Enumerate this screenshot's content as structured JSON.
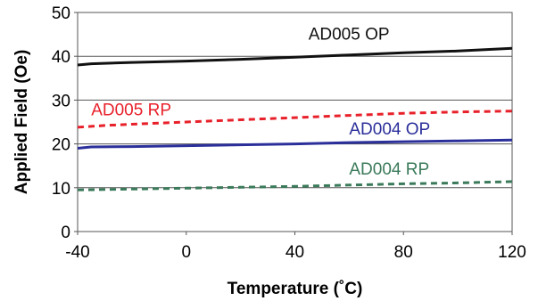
{
  "chart_data": {
    "type": "line",
    "title": "",
    "xlabel": "Temperature (˚C)",
    "ylabel": "Applied Field (Oe)",
    "xlim": [
      -40,
      120
    ],
    "ylim": [
      0,
      50
    ],
    "x_ticks": [
      "-40",
      "0",
      "40",
      "80",
      "120"
    ],
    "y_ticks": [
      "0",
      "10",
      "20",
      "30",
      "40",
      "50"
    ],
    "grid": "horizontal",
    "legend": "none",
    "series": [
      {
        "name": "AD005 OP",
        "color": "#111111",
        "dash": "solid",
        "x": [
          -40,
          -35,
          -20,
          0,
          20,
          40,
          60,
          80,
          100,
          120
        ],
        "y": [
          38.0,
          38.3,
          38.6,
          38.9,
          39.3,
          39.8,
          40.3,
          40.8,
          41.2,
          41.8
        ]
      },
      {
        "name": "AD005 RP",
        "color": "#e8202a",
        "dash": "dashed",
        "x": [
          -40,
          -30,
          -20,
          0,
          20,
          40,
          60,
          80,
          100,
          120
        ],
        "y": [
          23.8,
          24.2,
          24.5,
          25.0,
          25.5,
          26.0,
          26.5,
          27.0,
          27.3,
          27.5
        ]
      },
      {
        "name": "AD004 OP",
        "color": "#2b2f9a",
        "dash": "solid",
        "x": [
          -40,
          -35,
          -20,
          0,
          20,
          40,
          60,
          80,
          100,
          120
        ],
        "y": [
          19.0,
          19.3,
          19.4,
          19.6,
          19.8,
          20.0,
          20.3,
          20.5,
          20.7,
          20.9
        ]
      },
      {
        "name": "AD004 RP",
        "color": "#3a7a5a",
        "dash": "dashed",
        "x": [
          -40,
          -30,
          -20,
          0,
          20,
          40,
          60,
          80,
          100,
          120
        ],
        "y": [
          9.5,
          9.6,
          9.7,
          9.9,
          10.1,
          10.3,
          10.6,
          10.9,
          11.1,
          11.4
        ]
      }
    ],
    "annotations": [
      {
        "text": "AD005 OP",
        "color": "#111111",
        "x": 45,
        "y": 43.8
      },
      {
        "text": "AD005 RP",
        "color": "#e8202a",
        "x": -35,
        "y": 26.5
      },
      {
        "text": "AD004 OP",
        "color": "#2b2f9a",
        "x": 60,
        "y": 22.2
      },
      {
        "text": "AD004 RP",
        "color": "#3a7a5a",
        "x": 60,
        "y": 13.0
      }
    ]
  }
}
